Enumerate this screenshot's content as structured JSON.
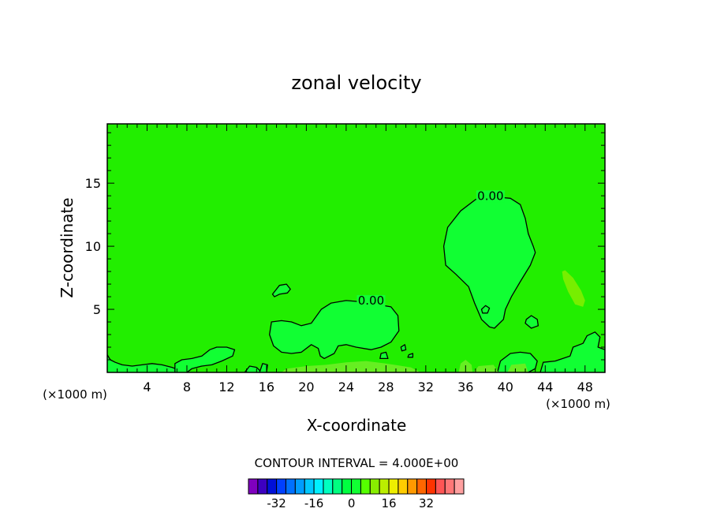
{
  "chart_data": {
    "type": "contour",
    "title": "zonal velocity",
    "xlabel": "X-coordinate",
    "ylabel": "Z-coordinate",
    "x_unit_left": "(×1000 m)",
    "x_unit_right": "(×1000 m)",
    "xlim": [
      0,
      50
    ],
    "ylim": [
      0,
      19.7
    ],
    "xticks": [
      "4",
      "8",
      "12",
      "16",
      "20",
      "24",
      "28",
      "32",
      "36",
      "40",
      "44",
      "48"
    ],
    "xtick_values": [
      4,
      8,
      12,
      16,
      20,
      24,
      28,
      32,
      36,
      40,
      44,
      48
    ],
    "yticks": [
      "5",
      "10",
      "15"
    ],
    "ytick_values": [
      5,
      10,
      15
    ],
    "contour_interval_text": "CONTOUR INTERVAL = 4.000E+00",
    "contour_label": "0.00",
    "field_colors": {
      "background": "#22ee00",
      "positive_region": "#11ff33",
      "weak_positive": "#66ee22",
      "strong_positive": "#88ee00"
    },
    "regions": [
      {
        "kind": "closed",
        "level": "0.00",
        "label_at": [
          38.5,
          13.8
        ],
        "fill": "#11ff33",
        "points": [
          [
            37,
            13.7
          ],
          [
            38,
            13.9
          ],
          [
            39,
            13.9
          ],
          [
            40.5,
            13.8
          ],
          [
            41.5,
            13.3
          ],
          [
            42,
            12.2
          ],
          [
            42.3,
            11
          ],
          [
            42.8,
            10
          ],
          [
            43,
            9.5
          ],
          [
            42.5,
            8.5
          ],
          [
            41.5,
            7.2
          ],
          [
            40.6,
            6
          ],
          [
            40,
            5
          ],
          [
            39.8,
            4.2
          ],
          [
            38.9,
            3.5
          ],
          [
            38.4,
            3.6
          ],
          [
            37.6,
            4.2
          ],
          [
            36.9,
            5.5
          ],
          [
            36.3,
            6.8
          ],
          [
            35,
            7.8
          ],
          [
            34,
            8.5
          ],
          [
            33.8,
            10
          ],
          [
            34.2,
            11.5
          ],
          [
            35.5,
            12.8
          ]
        ]
      },
      {
        "kind": "closed",
        "level": "0.00",
        "label_at": [
          26.5,
          5.5
        ],
        "fill": "#11ff33",
        "points": [
          [
            16.5,
            4
          ],
          [
            17.5,
            4.1
          ],
          [
            18.5,
            4
          ],
          [
            19.5,
            3.7
          ],
          [
            20.5,
            3.9
          ],
          [
            21.5,
            5
          ],
          [
            22.5,
            5.5
          ],
          [
            24,
            5.7
          ],
          [
            25.5,
            5.6
          ],
          [
            27,
            5.4
          ],
          [
            28.5,
            5.2
          ],
          [
            29.2,
            4.5
          ],
          [
            29.3,
            3.3
          ],
          [
            28.5,
            2.4
          ],
          [
            27.5,
            2
          ],
          [
            26.5,
            1.8
          ],
          [
            25,
            2
          ],
          [
            24,
            2.2
          ],
          [
            23.2,
            2.1
          ],
          [
            22.8,
            1.5
          ],
          [
            21.8,
            1.1
          ],
          [
            21.4,
            1.3
          ],
          [
            21.2,
            1.9
          ],
          [
            20.5,
            2.2
          ],
          [
            19.5,
            1.6
          ],
          [
            18.5,
            1.5
          ],
          [
            17.5,
            1.6
          ],
          [
            16.7,
            2.1
          ],
          [
            16.3,
            3
          ]
        ]
      },
      {
        "kind": "closed",
        "level": "0.00",
        "fill": "#11ff33",
        "points": [
          [
            16.6,
            6.2
          ],
          [
            17.3,
            6.9
          ],
          [
            18,
            7
          ],
          [
            18.4,
            6.6
          ],
          [
            18.1,
            6.3
          ],
          [
            17.3,
            6.2
          ],
          [
            16.8,
            6
          ]
        ]
      },
      {
        "kind": "closed",
        "level": "0.00",
        "fill": "#11ff33",
        "points": [
          [
            37.6,
            5
          ],
          [
            38,
            5.3
          ],
          [
            38.4,
            5.1
          ],
          [
            38.2,
            4.7
          ],
          [
            37.7,
            4.7
          ]
        ]
      },
      {
        "kind": "closed",
        "level": "0.00",
        "fill": "#11ff33",
        "points": [
          [
            42.1,
            4.2
          ],
          [
            42.6,
            4.5
          ],
          [
            43.2,
            4.2
          ],
          [
            43.3,
            3.7
          ],
          [
            42.6,
            3.5
          ],
          [
            42,
            3.9
          ]
        ]
      },
      {
        "kind": "closed",
        "level": "0.00",
        "fill": "#11ff33",
        "points": [
          [
            29.5,
            2
          ],
          [
            29.9,
            2.2
          ],
          [
            30,
            1.8
          ],
          [
            29.6,
            1.7
          ]
        ]
      },
      {
        "kind": "closed",
        "level": "0.00",
        "fill": "#11ff33",
        "points": [
          [
            30.3,
            1.4
          ],
          [
            30.7,
            1.5
          ],
          [
            30.7,
            1.2
          ],
          [
            30.2,
            1.2
          ]
        ]
      },
      {
        "kind": "closed",
        "level": "0.00",
        "fill": "#11ff33",
        "points": [
          [
            27.5,
            1.5
          ],
          [
            28,
            1.6
          ],
          [
            28.2,
            1.1
          ],
          [
            27.4,
            1.1
          ]
        ]
      },
      {
        "kind": "closed",
        "level": "weak",
        "fill": "#77ee00",
        "points": [
          [
            46,
            8.1
          ],
          [
            46.8,
            7.5
          ],
          [
            47.6,
            6.5
          ],
          [
            48,
            5.7
          ],
          [
            47.8,
            5.2
          ],
          [
            47,
            5.4
          ],
          [
            46.3,
            6.4
          ],
          [
            45.8,
            7.4
          ],
          [
            45.7,
            8
          ]
        ]
      },
      {
        "kind": "bottom",
        "level": "0.00",
        "fill": "#11ff33",
        "points": [
          [
            0,
            1.4
          ],
          [
            0.3,
            1
          ],
          [
            0.8,
            0.8
          ],
          [
            1.5,
            0.6
          ],
          [
            2.5,
            0.5
          ],
          [
            3.5,
            0.6
          ],
          [
            4.5,
            0.7
          ],
          [
            5.5,
            0.6
          ],
          [
            6.5,
            0.4
          ],
          [
            7.2,
            0.2
          ],
          [
            7.5,
            0
          ]
        ]
      },
      {
        "kind": "bottom",
        "level": "0.00",
        "fill": "#11ff33",
        "points": [
          [
            6.8,
            0
          ],
          [
            6.8,
            0.7
          ],
          [
            7.5,
            1
          ],
          [
            8.5,
            1.1
          ],
          [
            9.5,
            1.3
          ],
          [
            10.3,
            1.8
          ],
          [
            11,
            2
          ],
          [
            12,
            2
          ],
          [
            12.8,
            1.8
          ],
          [
            12.6,
            1.3
          ],
          [
            11.5,
            0.9
          ],
          [
            10.5,
            0.6
          ],
          [
            9.5,
            0.5
          ],
          [
            8.5,
            0.3
          ],
          [
            8,
            0
          ]
        ]
      },
      {
        "kind": "bottom",
        "level": "0.00",
        "fill": "#11ff33",
        "points": [
          [
            13.8,
            0
          ],
          [
            14.3,
            0.5
          ],
          [
            15,
            0.4
          ],
          [
            15.5,
            0
          ]
        ]
      },
      {
        "kind": "bottom",
        "level": "0.00",
        "fill": "#11ff33",
        "points": [
          [
            15.3,
            0
          ],
          [
            15.6,
            0.7
          ],
          [
            16.1,
            0.6
          ],
          [
            16,
            0
          ]
        ]
      },
      {
        "kind": "bottom",
        "level": "0.00",
        "fill": "#11ff33",
        "points": [
          [
            39.2,
            0
          ],
          [
            39.5,
            0.9
          ],
          [
            40.5,
            1.5
          ],
          [
            41.5,
            1.6
          ],
          [
            42.5,
            1.5
          ],
          [
            43.2,
            0.9
          ],
          [
            43,
            0.3
          ],
          [
            42.3,
            0
          ]
        ]
      },
      {
        "kind": "bottom",
        "level": "0.00",
        "fill": "#11ff33",
        "points": [
          [
            43.5,
            0
          ],
          [
            43.8,
            0.8
          ],
          [
            45,
            0.9
          ],
          [
            46.5,
            1.3
          ],
          [
            46.8,
            2
          ],
          [
            47.8,
            2.3
          ],
          [
            48.2,
            2.9
          ],
          [
            49,
            3.2
          ],
          [
            49.5,
            2.8
          ],
          [
            49.3,
            2
          ],
          [
            50,
            1.8
          ],
          [
            50,
            0
          ]
        ]
      },
      {
        "kind": "bottom",
        "level": "weak",
        "fill": "#66ee22",
        "points": [
          [
            17.5,
            0
          ],
          [
            18,
            0.3
          ],
          [
            20,
            0.5
          ],
          [
            22,
            0.6
          ],
          [
            24,
            0.8
          ],
          [
            26,
            0.9
          ],
          [
            28,
            0.7
          ],
          [
            30.5,
            0.4
          ],
          [
            31.5,
            0
          ]
        ]
      },
      {
        "kind": "bottom",
        "level": "weak",
        "fill": "#66ee22",
        "points": [
          [
            35.3,
            0
          ],
          [
            35.5,
            0.7
          ],
          [
            36,
            1
          ],
          [
            36.6,
            0.6
          ],
          [
            36.7,
            0
          ]
        ]
      },
      {
        "kind": "bottom",
        "level": "weak",
        "fill": "#66ee22",
        "points": [
          [
            36.8,
            0
          ],
          [
            37.3,
            0.5
          ],
          [
            38.8,
            0.6
          ],
          [
            39.3,
            0
          ]
        ]
      },
      {
        "kind": "bottom",
        "level": "weak",
        "fill": "#66ee22",
        "points": [
          [
            40.2,
            0
          ],
          [
            40.6,
            0.6
          ],
          [
            42,
            0.7
          ],
          [
            42.3,
            0
          ]
        ]
      }
    ],
    "colorbar": {
      "ticks": [
        "-32",
        "-16",
        "0",
        "16",
        "32"
      ],
      "tick_values": [
        -32,
        -16,
        0,
        16,
        32
      ],
      "levels": [
        -40,
        -36,
        -32,
        -28,
        -24,
        -20,
        -16,
        -12,
        -8,
        -4,
        0,
        4,
        8,
        12,
        16,
        20,
        24,
        28,
        32,
        36,
        40
      ],
      "colors": [
        "#7f00bf",
        "#3d00c0",
        "#0010d8",
        "#0040ff",
        "#0070ff",
        "#009cff",
        "#00c8ff",
        "#00f0ff",
        "#00ffc0",
        "#00ff80",
        "#00ff40",
        "#11ff33",
        "#55ff00",
        "#88ee00",
        "#bbee00",
        "#eeee00",
        "#ffcc00",
        "#ff9900",
        "#ff6600",
        "#ff3300",
        "#ff5555",
        "#ff7777",
        "#ffa0a0"
      ]
    }
  }
}
